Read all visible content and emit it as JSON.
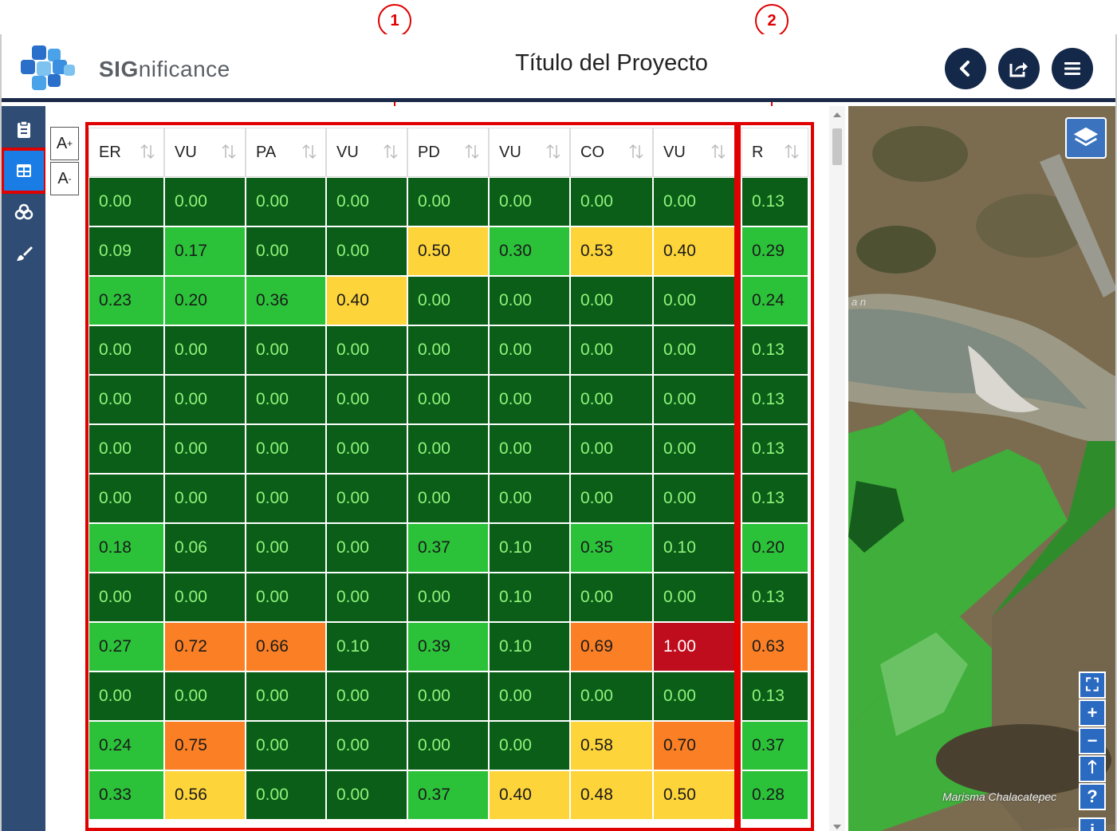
{
  "annotations": {
    "callout_1": "1",
    "callout_2": "2"
  },
  "header": {
    "brand_bold": "SIG",
    "brand_light": "nificance",
    "title": "Título del Proyecto"
  },
  "sidebar": {
    "items": [
      {
        "icon": "clipboard-icon"
      },
      {
        "icon": "table-icon",
        "active": true
      },
      {
        "icon": "layers-cluster-icon"
      },
      {
        "icon": "brush-icon"
      }
    ]
  },
  "font_controls": {
    "increase": "A",
    "increase_sup": "+",
    "decrease": "A",
    "decrease_sup": "-"
  },
  "table": {
    "columns": [
      "ER",
      "VU",
      "PA",
      "VU",
      "PD",
      "VU",
      "CO",
      "VU"
    ],
    "result_column": "R",
    "rows": [
      {
        "values": [
          "0.00",
          "0.00",
          "0.00",
          "0.00",
          "0.00",
          "0.00",
          "0.00",
          "0.00"
        ],
        "r": "0.13"
      },
      {
        "values": [
          "0.09",
          "0.17",
          "0.00",
          "0.00",
          "0.50",
          "0.30",
          "0.53",
          "0.40"
        ],
        "r": "0.29"
      },
      {
        "values": [
          "0.23",
          "0.20",
          "0.36",
          "0.40",
          "0.00",
          "0.00",
          "0.00",
          "0.00"
        ],
        "r": "0.24"
      },
      {
        "values": [
          "0.00",
          "0.00",
          "0.00",
          "0.00",
          "0.00",
          "0.00",
          "0.00",
          "0.00"
        ],
        "r": "0.13"
      },
      {
        "values": [
          "0.00",
          "0.00",
          "0.00",
          "0.00",
          "0.00",
          "0.00",
          "0.00",
          "0.00"
        ],
        "r": "0.13"
      },
      {
        "values": [
          "0.00",
          "0.00",
          "0.00",
          "0.00",
          "0.00",
          "0.00",
          "0.00",
          "0.00"
        ],
        "r": "0.13"
      },
      {
        "values": [
          "0.00",
          "0.00",
          "0.00",
          "0.00",
          "0.00",
          "0.00",
          "0.00",
          "0.00"
        ],
        "r": "0.13"
      },
      {
        "values": [
          "0.18",
          "0.06",
          "0.00",
          "0.00",
          "0.37",
          "0.10",
          "0.35",
          "0.10"
        ],
        "r": "0.20"
      },
      {
        "values": [
          "0.00",
          "0.00",
          "0.00",
          "0.00",
          "0.00",
          "0.10",
          "0.00",
          "0.00"
        ],
        "r": "0.13"
      },
      {
        "values": [
          "0.27",
          "0.72",
          "0.66",
          "0.10",
          "0.39",
          "0.10",
          "0.69",
          "1.00"
        ],
        "r": "0.63"
      },
      {
        "values": [
          "0.00",
          "0.00",
          "0.00",
          "0.00",
          "0.00",
          "0.00",
          "0.00",
          "0.00"
        ],
        "r": "0.13"
      },
      {
        "values": [
          "0.24",
          "0.75",
          "0.00",
          "0.00",
          "0.00",
          "0.00",
          "0.58",
          "0.70"
        ],
        "r": "0.37"
      },
      {
        "values": [
          "0.33",
          "0.56",
          "0.00",
          "0.00",
          "0.37",
          "0.40",
          "0.48",
          "0.50"
        ],
        "r": "0.28"
      }
    ]
  },
  "colors": {
    "dark_green": "#0b5e18",
    "light_green": "#2bc23a",
    "yellow": "#fdd43a",
    "orange": "#fa7f25",
    "red": "#c00d1e",
    "header_navy": "#14284a",
    "sidebar_blue": "#2e4c74"
  },
  "map": {
    "label": "Marisma Chalacatepec",
    "label_partial": "a n",
    "controls": [
      {
        "icon": "fullscreen-icon",
        "glyph": "⛶"
      },
      {
        "icon": "zoom-in-icon",
        "glyph": "+"
      },
      {
        "icon": "zoom-out-icon",
        "glyph": "−"
      },
      {
        "icon": "north-arrow-icon",
        "glyph": "🡑"
      },
      {
        "icon": "help-icon",
        "glyph": "?"
      },
      {
        "icon": "info-icon",
        "glyph": "i"
      }
    ]
  }
}
